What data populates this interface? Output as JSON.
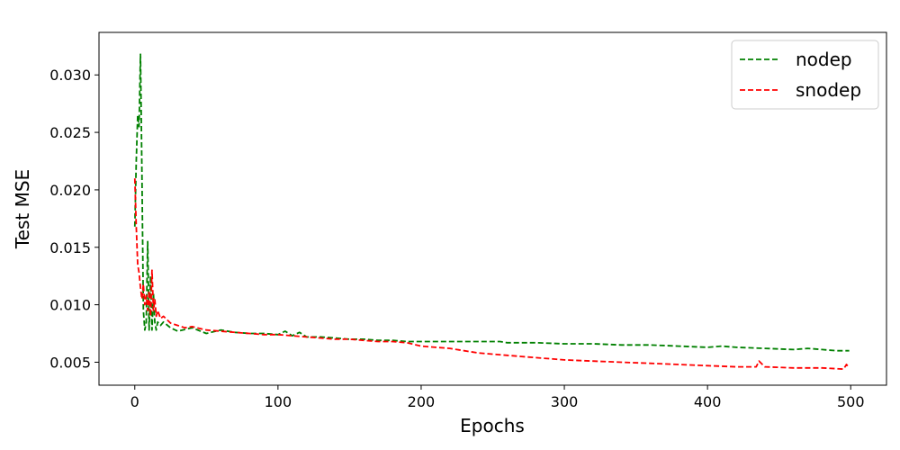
{
  "chart_data": {
    "type": "line",
    "title": "",
    "xlabel": "Epochs",
    "ylabel": "Test MSE",
    "xlim": [
      -25,
      525
    ],
    "ylim": [
      0.003,
      0.0337
    ],
    "x_ticks": [
      0,
      100,
      200,
      300,
      400,
      500
    ],
    "x_tick_labels": [
      "0",
      "100",
      "200",
      "300",
      "400",
      "500"
    ],
    "y_ticks": [
      0.005,
      0.01,
      0.015,
      0.02,
      0.025,
      0.03
    ],
    "y_tick_labels": [
      "0.005",
      "0.010",
      "0.015",
      "0.020",
      "0.025",
      "0.030"
    ],
    "grid": false,
    "legend_position": "top-right",
    "series": [
      {
        "name": "nodep",
        "color": "#008000",
        "style": "dashed",
        "x": [
          0,
          1,
          2,
          3,
          4,
          5,
          6,
          7,
          8,
          9,
          10,
          11,
          12,
          13,
          14,
          15,
          16,
          18,
          20,
          25,
          30,
          40,
          50,
          60,
          70,
          80,
          90,
          100,
          105,
          110,
          115,
          120,
          130,
          140,
          150,
          160,
          170,
          180,
          190,
          200,
          220,
          240,
          255,
          260,
          280,
          300,
          320,
          340,
          360,
          380,
          400,
          410,
          420,
          440,
          460,
          470,
          480,
          490,
          499
        ],
        "y": [
          0.0168,
          0.0225,
          0.0265,
          0.0255,
          0.0318,
          0.0215,
          0.0095,
          0.0078,
          0.0085,
          0.0155,
          0.0078,
          0.0125,
          0.0078,
          0.011,
          0.0085,
          0.0078,
          0.0085,
          0.0082,
          0.0085,
          0.008,
          0.0077,
          0.008,
          0.0075,
          0.0078,
          0.0076,
          0.0075,
          0.0075,
          0.0074,
          0.0077,
          0.0073,
          0.0076,
          0.0072,
          0.0072,
          0.0071,
          0.007,
          0.007,
          0.0069,
          0.0069,
          0.0068,
          0.0068,
          0.0068,
          0.0068,
          0.0068,
          0.0067,
          0.0067,
          0.0066,
          0.0066,
          0.0065,
          0.0065,
          0.0064,
          0.0063,
          0.0064,
          0.0063,
          0.0062,
          0.0061,
          0.0062,
          0.0061,
          0.006,
          0.006
        ]
      },
      {
        "name": "snodep",
        "color": "#ff0000",
        "style": "dashed",
        "x": [
          0,
          1,
          2,
          3,
          4,
          5,
          6,
          7,
          8,
          9,
          10,
          11,
          12,
          13,
          14,
          15,
          16,
          18,
          20,
          25,
          30,
          35,
          40,
          50,
          60,
          70,
          80,
          90,
          100,
          110,
          120,
          130,
          140,
          150,
          160,
          170,
          180,
          190,
          200,
          210,
          220,
          230,
          240,
          250,
          260,
          270,
          280,
          290,
          300,
          320,
          340,
          360,
          380,
          400,
          420,
          434,
          436,
          440,
          460,
          480,
          495,
          497,
          499
        ],
        "y": [
          0.021,
          0.0168,
          0.0135,
          0.0128,
          0.0115,
          0.0105,
          0.0118,
          0.01,
          0.0108,
          0.0095,
          0.0112,
          0.009,
          0.013,
          0.0095,
          0.0105,
          0.009,
          0.0095,
          0.0088,
          0.009,
          0.0084,
          0.0082,
          0.008,
          0.0081,
          0.0078,
          0.0077,
          0.0076,
          0.0075,
          0.0074,
          0.0074,
          0.0073,
          0.0072,
          0.0071,
          0.007,
          0.007,
          0.0069,
          0.0068,
          0.0068,
          0.0067,
          0.0064,
          0.0063,
          0.0062,
          0.006,
          0.0058,
          0.0057,
          0.0056,
          0.0055,
          0.0054,
          0.0053,
          0.0052,
          0.0051,
          0.005,
          0.0049,
          0.0048,
          0.0047,
          0.0046,
          0.0046,
          0.0051,
          0.0046,
          0.0045,
          0.0045,
          0.0044,
          0.0048,
          0.0045
        ]
      }
    ]
  }
}
